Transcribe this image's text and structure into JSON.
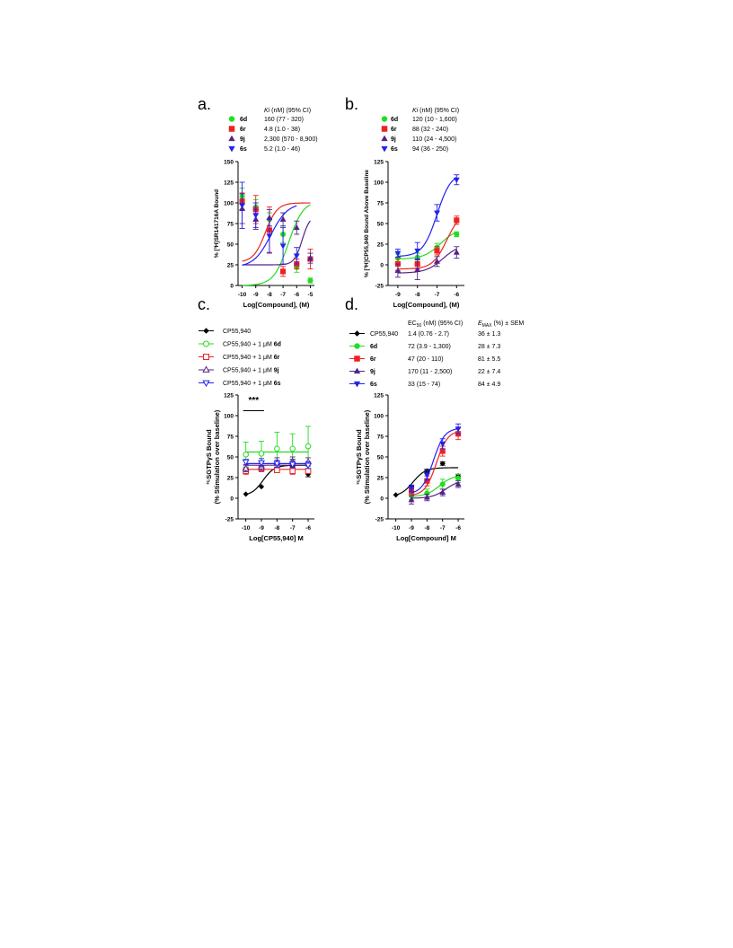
{
  "chart_data": [
    {
      "panel": "a.",
      "type": "scatter",
      "xlabel": "Log[Compound], (M)",
      "ylabel": "% [³H]SR141716A Bound",
      "xlim": [
        -10.3,
        -4.7
      ],
      "ylim": [
        0,
        150
      ],
      "xticks": [
        -10,
        -9,
        -8,
        -7,
        -6,
        -5
      ],
      "yticks": [
        0,
        25,
        50,
        75,
        100,
        125,
        150
      ],
      "legend_header": "Ki (nM) (95% CI)",
      "series": [
        {
          "name": "6d",
          "value": "160 (77 - 320)",
          "color": "#22dd22",
          "marker": "circle",
          "x": [
            -10,
            -9,
            -8,
            -7,
            -6,
            -5
          ],
          "y": [
            108,
            95,
            80,
            62,
            22,
            6
          ],
          "err": [
            10,
            9,
            8,
            10,
            6,
            3
          ],
          "curve": {
            "top": 103,
            "bottom": 0,
            "ec50": -6.6,
            "hill": 0.8
          }
        },
        {
          "name": "6r",
          "value": "4.8 (1.0 - 38)",
          "color": "#ee2222",
          "marker": "square",
          "x": [
            -10,
            -9,
            -8,
            -7,
            -6,
            -5
          ],
          "y": [
            102,
            92,
            67,
            17,
            26,
            32
          ],
          "err": [
            10,
            17,
            28,
            6,
            6,
            12
          ],
          "curve": {
            "top": 100,
            "bottom": 28,
            "ec50": -8.3,
            "hill": 1.0
          }
        },
        {
          "name": "9j",
          "value": "2,300 (570 - 8,900)",
          "color": "#552288",
          "marker": "triangle-up",
          "x": [
            -10,
            -9,
            -8,
            -7,
            -6,
            -5
          ],
          "y": [
            93,
            80,
            82,
            80,
            70,
            33
          ],
          "err": [
            18,
            12,
            10,
            8,
            8,
            6
          ],
          "curve": {
            "top": 85,
            "bottom": 25,
            "ec50": -5.6,
            "hill": 1.5
          }
        },
        {
          "name": "6s",
          "value": "5.2 (1.0 - 46)",
          "color": "#2222ee",
          "marker": "triangle-down",
          "x": [
            -10,
            -9,
            -8,
            -7,
            -6
          ],
          "y": [
            97,
            85,
            60,
            48,
            36
          ],
          "err": [
            28,
            15,
            20,
            22,
            10
          ],
          "curve": {
            "top": 100,
            "bottom": 22,
            "ec50": -7.9,
            "hill": 0.7
          }
        }
      ]
    },
    {
      "panel": "b.",
      "type": "scatter",
      "xlabel": "Log[Compound], (M)",
      "ylabel": "% [³H]CP55,940 Bound Above Baseline",
      "xlim": [
        -9.5,
        -5.6
      ],
      "ylim": [
        -25,
        125
      ],
      "xticks": [
        -9,
        -8,
        -7,
        -6
      ],
      "yticks": [
        -25,
        0,
        25,
        50,
        75,
        100,
        125
      ],
      "legend_header": "Ki (nM) (95% CI)",
      "series": [
        {
          "name": "6d",
          "value": "120 (10 - 1,600)",
          "color": "#22dd22",
          "marker": "circle",
          "x": [
            -9,
            -8,
            -7,
            -6
          ],
          "y": [
            8,
            9,
            21,
            37
          ],
          "err": [
            5,
            5,
            5,
            3
          ],
          "curve": {
            "bottom": 7,
            "top": 45,
            "ec50": -6.8,
            "hill": 1.0
          }
        },
        {
          "name": "6r",
          "value": "88 (32 - 240)",
          "color": "#ee2222",
          "marker": "square",
          "x": [
            -9,
            -8,
            -7,
            -6
          ],
          "y": [
            1,
            1,
            17,
            54
          ],
          "err": [
            8,
            6,
            5,
            5
          ],
          "curve": {
            "bottom": -5,
            "top": 65,
            "ec50": -6.5,
            "hill": 1.2
          }
        },
        {
          "name": "9j",
          "value": "110 (24 - 4,500)",
          "color": "#552288",
          "marker": "triangle-up",
          "x": [
            -9,
            -8,
            -7,
            -6
          ],
          "y": [
            -7,
            -6,
            4,
            15
          ],
          "err": [
            8,
            12,
            6,
            7
          ],
          "curve": {
            "bottom": -10,
            "top": 25,
            "ec50": -6.7,
            "hill": 1.0
          }
        },
        {
          "name": "6s",
          "value": "94 (36 - 250)",
          "color": "#2222ee",
          "marker": "triangle-down",
          "x": [
            -9,
            -8,
            -7,
            -6
          ],
          "y": [
            14,
            17,
            63,
            103
          ],
          "err": [
            5,
            10,
            10,
            6
          ],
          "curve": {
            "bottom": 10,
            "top": 112,
            "ec50": -7.0,
            "hill": 1.2
          }
        }
      ]
    },
    {
      "panel": "c.",
      "type": "scatter",
      "xlabel": "Log[CP55,940] M",
      "ylabel": "³⁵SGTPγS Bound",
      "ylabel2": "(% Stimulation over baseline)",
      "xlim": [
        -10.5,
        -5.6
      ],
      "ylim": [
        -25,
        125
      ],
      "xticks": [
        -10,
        -9,
        -8,
        -7,
        -6
      ],
      "yticks": [
        -25,
        0,
        25,
        50,
        75,
        100,
        125
      ],
      "annotation": "***",
      "series": [
        {
          "name_prefix": "CP55,940",
          "name_bold": "",
          "color": "#000000",
          "marker": "diamond",
          "filled": true,
          "x": [
            -10,
            -9,
            -8,
            -7,
            -6
          ],
          "y": [
            5,
            14,
            34,
            43,
            29
          ],
          "err": [
            0,
            0,
            3,
            4,
            3
          ],
          "curve": {
            "bottom": 3,
            "top": 40,
            "ec50": -8.9,
            "hill": 1.2
          }
        },
        {
          "name_prefix": "CP55,940 + 1 μM ",
          "name_bold": "6d",
          "color": "#22dd22",
          "marker": "circle",
          "filled": false,
          "x": [
            -10,
            -9,
            -8,
            -7,
            -6
          ],
          "y": [
            53,
            54,
            60,
            60,
            63
          ],
          "err": [
            15,
            15,
            20,
            18,
            24
          ],
          "curve": {
            "flat": 56
          }
        },
        {
          "name_prefix": "CP55,940 + 1 μM ",
          "name_bold": "6r",
          "color": "#ee2222",
          "marker": "square",
          "filled": false,
          "x": [
            -10,
            -9,
            -8,
            -7,
            -6
          ],
          "y": [
            33,
            36,
            34,
            33,
            33
          ],
          "err": [
            4,
            4,
            3,
            4,
            3
          ],
          "curve": {
            "flat": 35
          }
        },
        {
          "name_prefix": "CP55,940 + 1 μM ",
          "name_bold": "9j",
          "color": "#552288",
          "marker": "triangle-up",
          "filled": false,
          "x": [
            -10,
            -9,
            -8,
            -7,
            -6
          ],
          "y": [
            36,
            38,
            43,
            44,
            44
          ],
          "err": [
            4,
            4,
            6,
            6,
            5
          ],
          "curve": {
            "flat": 40
          }
        },
        {
          "name_prefix": "CP55,940 + 1 μM ",
          "name_bold": "6s",
          "color": "#2222ee",
          "marker": "triangle-down",
          "filled": false,
          "x": [
            -10,
            -9,
            -8,
            -7,
            -6
          ],
          "y": [
            44,
            43,
            42,
            41,
            40
          ],
          "err": [
            3,
            5,
            4,
            4,
            4
          ],
          "curve": {
            "flat": 42
          }
        }
      ]
    },
    {
      "panel": "d.",
      "type": "scatter",
      "xlabel": "Log[Compound] M",
      "ylabel": "³⁵SGTPγS Bound",
      "ylabel2": "(% Stimulation over baseline)",
      "xlim": [
        -10.5,
        -5.6
      ],
      "ylim": [
        -25,
        125
      ],
      "xticks": [
        -10,
        -9,
        -8,
        -7,
        -6
      ],
      "yticks": [
        -25,
        0,
        25,
        50,
        75,
        100,
        125
      ],
      "legend_header_ec50": "EC50 (nM) (95% CI)",
      "legend_header_emax": "EMAX (%) ± SEM",
      "series": [
        {
          "name": "CP55,940",
          "bold": false,
          "ec50": "1.4 (0.76 - 2.7)",
          "emax": "36 ± 1.3",
          "color": "#000000",
          "marker": "diamond",
          "x": [
            -10,
            -9,
            -8,
            -7,
            -6
          ],
          "y": [
            4,
            13,
            33,
            42,
            27
          ],
          "err": [
            0,
            2,
            2,
            2,
            2
          ],
          "curve": {
            "bottom": 2,
            "top": 37,
            "ec50": -8.9,
            "hill": 1.1
          }
        },
        {
          "name": "6d",
          "bold": true,
          "ec50": "72 (3.9 - 1,300)",
          "emax": "28 ± 7.3",
          "color": "#22dd22",
          "marker": "circle",
          "x": [
            -9,
            -8,
            -7,
            -6
          ],
          "y": [
            3,
            6,
            17,
            24
          ],
          "err": [
            5,
            5,
            6,
            5
          ],
          "curve": {
            "bottom": 2,
            "top": 28,
            "ec50": -7.2,
            "hill": 1.0
          }
        },
        {
          "name": "6r",
          "bold": true,
          "ec50": "47 (20 - 110)",
          "emax": "81 ± 5.5",
          "color": "#ee2222",
          "marker": "square",
          "x": [
            -9,
            -8,
            -7,
            -6
          ],
          "y": [
            9,
            21,
            57,
            78
          ],
          "err": [
            4,
            6,
            6,
            7
          ],
          "curve": {
            "bottom": 3,
            "top": 82,
            "ec50": -7.4,
            "hill": 1.2
          }
        },
        {
          "name": "9j",
          "bold": true,
          "ec50": "170 (11 - 2,500)",
          "emax": "22 ± 7.4",
          "color": "#552288",
          "marker": "triangle-up",
          "x": [
            -9,
            -8,
            -7,
            -6
          ],
          "y": [
            -2,
            1,
            7,
            17
          ],
          "err": [
            5,
            4,
            4,
            4
          ],
          "curve": {
            "bottom": 0,
            "top": 22,
            "ec50": -6.8,
            "hill": 1.0
          }
        },
        {
          "name": "6s",
          "bold": true,
          "ec50": "33 (15 - 74)",
          "emax": "84 ± 4.9",
          "color": "#2222ee",
          "marker": "triangle-down",
          "x": [
            -9,
            -8,
            -7,
            -6
          ],
          "y": [
            12,
            28,
            66,
            84
          ],
          "err": [
            4,
            6,
            6,
            6
          ],
          "curve": {
            "bottom": 5,
            "top": 85,
            "ec50": -7.6,
            "hill": 1.2
          }
        }
      ]
    }
  ]
}
